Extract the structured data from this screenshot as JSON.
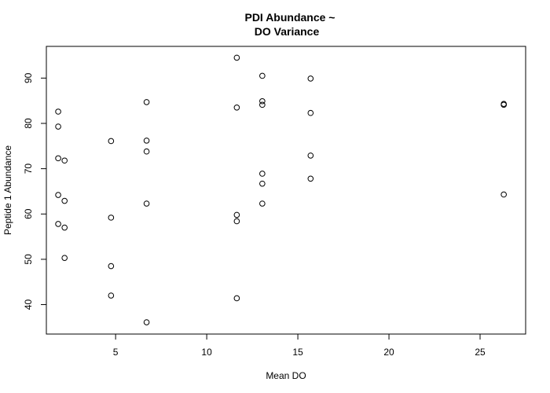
{
  "chart_data": {
    "type": "scatter",
    "title": "PDI Abundance ~\nDO Variance",
    "title_lines": [
      "PDI Abundance ~",
      "DO Variance"
    ],
    "xlabel": "Mean DO",
    "ylabel": "Peptide 1 Abundance",
    "xlim": [
      1.2,
      27.5
    ],
    "ylim": [
      33.5,
      97.0
    ],
    "xticks": [
      5,
      10,
      15,
      20,
      25
    ],
    "yticks": [
      40,
      50,
      60,
      70,
      80,
      90
    ],
    "grid": false,
    "legend": "none",
    "point_style": "open-circle",
    "points": [
      {
        "x": 1.85,
        "y": 82.6
      },
      {
        "x": 1.85,
        "y": 79.3
      },
      {
        "x": 1.85,
        "y": 72.3
      },
      {
        "x": 1.85,
        "y": 64.2
      },
      {
        "x": 1.85,
        "y": 57.8
      },
      {
        "x": 2.2,
        "y": 71.8
      },
      {
        "x": 2.2,
        "y": 62.9
      },
      {
        "x": 2.2,
        "y": 57.0
      },
      {
        "x": 2.2,
        "y": 50.3
      },
      {
        "x": 4.75,
        "y": 76.1
      },
      {
        "x": 4.75,
        "y": 59.2
      },
      {
        "x": 4.75,
        "y": 48.5
      },
      {
        "x": 4.75,
        "y": 42.0
      },
      {
        "x": 6.7,
        "y": 84.7
      },
      {
        "x": 6.7,
        "y": 76.2
      },
      {
        "x": 6.7,
        "y": 73.8
      },
      {
        "x": 6.7,
        "y": 62.3
      },
      {
        "x": 6.7,
        "y": 36.1
      },
      {
        "x": 11.65,
        "y": 94.5
      },
      {
        "x": 11.65,
        "y": 83.5
      },
      {
        "x": 11.65,
        "y": 59.8
      },
      {
        "x": 11.65,
        "y": 58.4
      },
      {
        "x": 11.65,
        "y": 41.4
      },
      {
        "x": 13.05,
        "y": 90.5
      },
      {
        "x": 13.05,
        "y": 84.9
      },
      {
        "x": 13.05,
        "y": 84.1
      },
      {
        "x": 13.05,
        "y": 68.9
      },
      {
        "x": 13.05,
        "y": 66.7
      },
      {
        "x": 13.05,
        "y": 62.3
      },
      {
        "x": 15.7,
        "y": 89.9
      },
      {
        "x": 15.7,
        "y": 82.3
      },
      {
        "x": 15.7,
        "y": 72.9
      },
      {
        "x": 15.7,
        "y": 67.8
      },
      {
        "x": 26.3,
        "y": 84.3
      },
      {
        "x": 26.3,
        "y": 84.1
      },
      {
        "x": 26.3,
        "y": 64.3
      }
    ],
    "colors": {
      "points": "#000000",
      "axes": "#000000",
      "background": "#ffffff"
    }
  }
}
